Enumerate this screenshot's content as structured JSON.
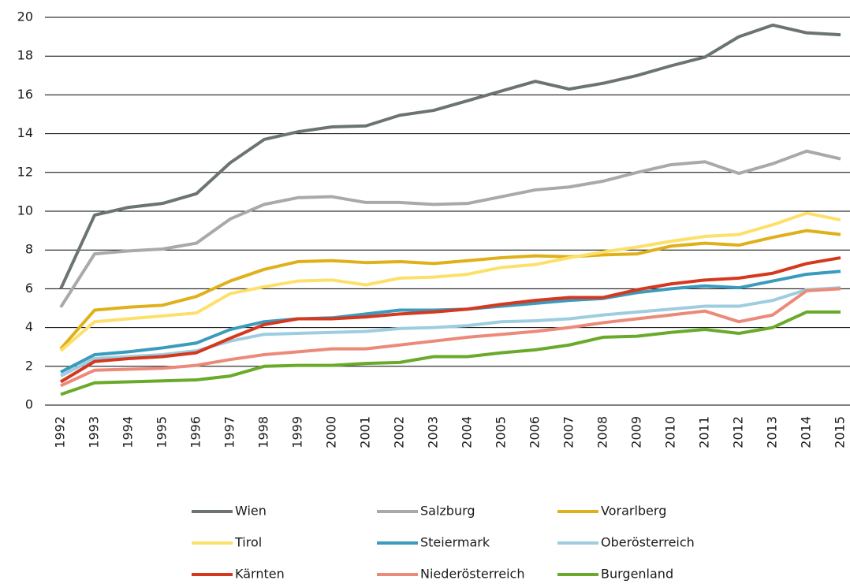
{
  "chart_data": {
    "type": "line",
    "categories": [
      "1992",
      "1993",
      "1994",
      "1995",
      "1996",
      "1997",
      "1998",
      "1999",
      "2000",
      "2001",
      "2002",
      "2003",
      "2004",
      "2005",
      "2006",
      "2007",
      "2008",
      "2009",
      "2010",
      "2011",
      "2012",
      "2013",
      "2014",
      "2015"
    ],
    "series": [
      {
        "name": "Wien",
        "color": "#6b7470",
        "values": [
          6.0,
          9.8,
          10.2,
          10.4,
          10.9,
          12.5,
          13.7,
          14.1,
          14.35,
          14.4,
          14.95,
          15.2,
          15.7,
          16.2,
          16.7,
          16.3,
          16.6,
          17.0,
          17.5,
          17.95,
          19.0,
          19.6,
          19.2,
          19.1
        ]
      },
      {
        "name": "Salzburg",
        "color": "#a8aaa8",
        "values": [
          5.05,
          7.8,
          7.95,
          8.05,
          8.35,
          9.6,
          10.35,
          10.7,
          10.75,
          10.45,
          10.45,
          10.35,
          10.4,
          10.75,
          11.1,
          11.25,
          11.55,
          12.0,
          12.4,
          12.55,
          11.95,
          12.45,
          13.1,
          12.7
        ]
      },
      {
        "name": "Vorarlberg",
        "color": "#e0b01a",
        "values": [
          2.9,
          4.9,
          5.05,
          5.15,
          5.6,
          6.4,
          7.0,
          7.4,
          7.45,
          7.35,
          7.4,
          7.3,
          7.45,
          7.6,
          7.7,
          7.65,
          7.75,
          7.8,
          8.2,
          8.35,
          8.25,
          8.65,
          9.0,
          8.8
        ]
      },
      {
        "name": "Tirol",
        "color": "#fde06a",
        "values": [
          2.8,
          4.3,
          4.45,
          4.6,
          4.75,
          5.75,
          6.1,
          6.4,
          6.45,
          6.2,
          6.55,
          6.6,
          6.75,
          7.1,
          7.25,
          7.6,
          7.9,
          8.15,
          8.45,
          8.7,
          8.8,
          9.3,
          9.9,
          9.55
        ]
      },
      {
        "name": "Steiermark",
        "color": "#3a9bbc",
        "values": [
          1.7,
          2.6,
          2.75,
          2.95,
          3.2,
          3.9,
          4.3,
          4.45,
          4.5,
          4.7,
          4.9,
          4.9,
          4.95,
          5.1,
          5.25,
          5.4,
          5.5,
          5.8,
          6.0,
          6.15,
          6.05,
          6.4,
          6.75,
          6.9
        ]
      },
      {
        "name": "Oberösterreich",
        "color": "#9ecde0",
        "values": [
          1.5,
          2.4,
          2.5,
          2.6,
          2.8,
          3.3,
          3.65,
          3.7,
          3.75,
          3.8,
          3.95,
          4.0,
          4.1,
          4.3,
          4.35,
          4.45,
          4.65,
          4.8,
          4.95,
          5.1,
          5.1,
          5.4,
          5.95,
          6.05
        ]
      },
      {
        "name": "Kärnten",
        "color": "#d6371f",
        "values": [
          1.2,
          2.25,
          2.4,
          2.5,
          2.7,
          3.45,
          4.15,
          4.45,
          4.45,
          4.55,
          4.7,
          4.8,
          4.95,
          5.2,
          5.4,
          5.55,
          5.55,
          5.95,
          6.25,
          6.45,
          6.55,
          6.8,
          7.3,
          7.6
        ]
      },
      {
        "name": "Niederösterreich",
        "color": "#ec8a7a",
        "values": [
          1.0,
          1.8,
          1.85,
          1.9,
          2.05,
          2.35,
          2.6,
          2.75,
          2.9,
          2.9,
          3.1,
          3.3,
          3.5,
          3.65,
          3.8,
          4.0,
          4.25,
          4.45,
          4.65,
          4.85,
          4.3,
          4.65,
          5.9,
          6.0
        ]
      },
      {
        "name": "Burgenland",
        "color": "#6aaa2a",
        "values": [
          0.55,
          1.15,
          1.2,
          1.25,
          1.3,
          1.5,
          2.0,
          2.05,
          2.05,
          2.15,
          2.2,
          2.5,
          2.5,
          2.7,
          2.85,
          3.1,
          3.5,
          3.55,
          3.75,
          3.9,
          3.7,
          4.0,
          4.8,
          4.8
        ]
      }
    ],
    "ylim": [
      0,
      20
    ],
    "yticks": [
      0,
      2,
      4,
      6,
      8,
      10,
      12,
      14,
      16,
      18,
      20
    ],
    "grid": true,
    "legend": "bottom"
  }
}
